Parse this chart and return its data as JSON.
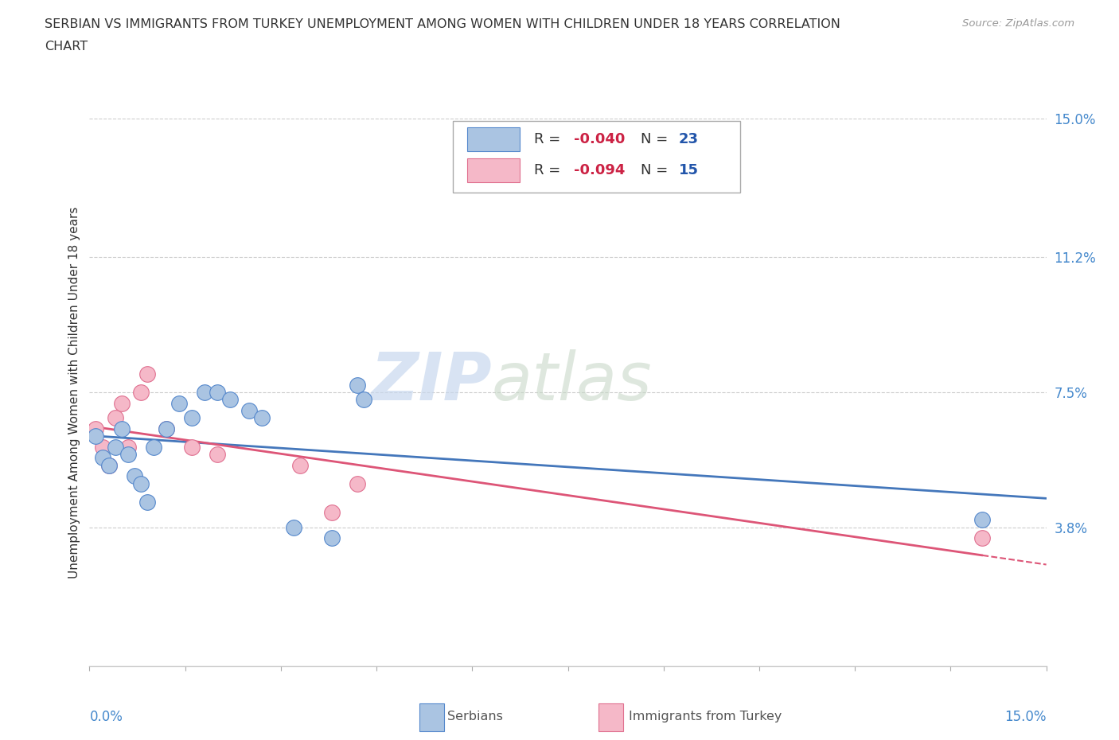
{
  "title_line1": "SERBIAN VS IMMIGRANTS FROM TURKEY UNEMPLOYMENT AMONG WOMEN WITH CHILDREN UNDER 18 YEARS CORRELATION",
  "title_line2": "CHART",
  "source": "Source: ZipAtlas.com",
  "ylabel": "Unemployment Among Women with Children Under 18 years",
  "xlim": [
    0.0,
    0.15
  ],
  "ylim": [
    0.0,
    0.15
  ],
  "xticks": [
    0.0,
    0.015,
    0.03,
    0.045,
    0.06,
    0.075,
    0.09,
    0.105,
    0.12,
    0.135,
    0.15
  ],
  "ytick_labels_right": [
    "3.8%",
    "7.5%",
    "11.2%",
    "15.0%"
  ],
  "ytick_vals_right": [
    0.038,
    0.075,
    0.112,
    0.15
  ],
  "watermark_zip": "ZIP",
  "watermark_atlas": "atlas",
  "serbian_color": "#aac4e2",
  "serbian_edge_color": "#5588cc",
  "turkish_color": "#f5b8c8",
  "turkish_edge_color": "#e07090",
  "serbian_line_color": "#4477bb",
  "turkish_line_color": "#dd5577",
  "background_color": "#ffffff",
  "grid_color": "#cccccc",
  "scatter_size": 200,
  "serbian_x": [
    0.001,
    0.002,
    0.003,
    0.004,
    0.005,
    0.006,
    0.007,
    0.008,
    0.009,
    0.01,
    0.012,
    0.014,
    0.016,
    0.018,
    0.02,
    0.022,
    0.025,
    0.027,
    0.032,
    0.038,
    0.042,
    0.043,
    0.14
  ],
  "serbian_y": [
    0.063,
    0.057,
    0.055,
    0.06,
    0.065,
    0.058,
    0.052,
    0.05,
    0.045,
    0.06,
    0.065,
    0.072,
    0.068,
    0.075,
    0.075,
    0.073,
    0.07,
    0.068,
    0.038,
    0.035,
    0.077,
    0.073,
    0.04
  ],
  "turkish_x": [
    0.001,
    0.002,
    0.003,
    0.004,
    0.005,
    0.006,
    0.008,
    0.009,
    0.012,
    0.016,
    0.02,
    0.033,
    0.038,
    0.042,
    0.14
  ],
  "turkish_y": [
    0.065,
    0.06,
    0.055,
    0.068,
    0.072,
    0.06,
    0.075,
    0.08,
    0.065,
    0.06,
    0.058,
    0.055,
    0.042,
    0.05,
    0.035
  ]
}
